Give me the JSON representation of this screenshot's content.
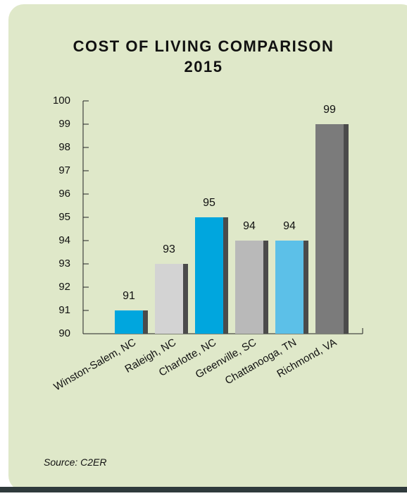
{
  "chart_data": {
    "type": "bar",
    "title": "COST OF LIVING COMPARISON",
    "subtitle": "2015",
    "categories": [
      "Winston-Salem, NC",
      "Raleigh, NC",
      "Charlotte, NC",
      "Greenville, SC",
      "Chattanooga, TN",
      "Richmond, VA"
    ],
    "values": [
      91,
      93,
      95,
      94,
      94,
      99
    ],
    "colors": [
      "#00a6de",
      "#d3d3d3",
      "#00a6de",
      "#b9b9b9",
      "#5cc0e8",
      "#7b7b7b"
    ],
    "ylim": [
      90,
      100
    ],
    "yticks": [
      90,
      91,
      92,
      93,
      94,
      95,
      96,
      97,
      98,
      99,
      100
    ],
    "source": "Source: C2ER"
  }
}
